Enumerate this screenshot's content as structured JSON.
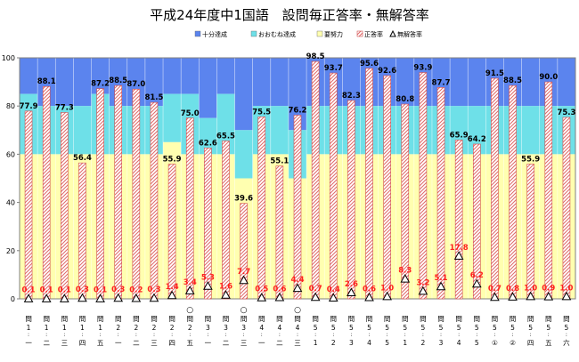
{
  "chart_data": {
    "type": "bar",
    "title": "平成24年度中1国語　設問毎正答率・無解答率",
    "legend_position": "top-right",
    "ylim": [
      0,
      100
    ],
    "yticks": [
      0,
      20,
      40,
      60,
      80,
      100
    ],
    "grid": false,
    "legend": [
      {
        "key": "sufficient",
        "label": "十分達成",
        "color": "#5b84ee"
      },
      {
        "key": "mostly",
        "label": "おおむね達成",
        "color": "#6ee0e8"
      },
      {
        "key": "effort",
        "label": "要努力",
        "color": "#ffffb0"
      },
      {
        "key": "correct",
        "label": "正答率",
        "color": "#e8a0a0"
      },
      {
        "key": "noanswer",
        "label": "無解答率",
        "color": "#000000"
      }
    ],
    "categories": [
      {
        "top": "問",
        "major": "1",
        "minor": "一",
        "circle": false
      },
      {
        "top": "問",
        "major": "1",
        "minor": "二",
        "circle": false
      },
      {
        "top": "問",
        "major": "1",
        "minor": "三",
        "circle": false
      },
      {
        "top": "問",
        "major": "1",
        "minor": "四",
        "circle": false
      },
      {
        "top": "問",
        "major": "1",
        "minor": "五",
        "circle": false
      },
      {
        "top": "問",
        "major": "2",
        "minor": "一",
        "circle": false
      },
      {
        "top": "問",
        "major": "2",
        "minor": "二",
        "circle": false
      },
      {
        "top": "問",
        "major": "2",
        "minor": "三",
        "circle": false
      },
      {
        "top": "問",
        "major": "2",
        "minor": "四",
        "circle": false
      },
      {
        "top": "問",
        "major": "2",
        "minor": "五",
        "circle": true
      },
      {
        "top": "問",
        "major": "3",
        "minor": "一",
        "circle": false
      },
      {
        "top": "問",
        "major": "3",
        "minor": "二",
        "circle": false
      },
      {
        "top": "問",
        "major": "3",
        "minor": "三",
        "circle": true
      },
      {
        "top": "問",
        "major": "4",
        "minor": "一",
        "circle": false
      },
      {
        "top": "問",
        "major": "4",
        "minor": "二",
        "circle": false
      },
      {
        "top": "問",
        "major": "4",
        "minor": "三",
        "circle": true
      },
      {
        "top": "問",
        "major": "5",
        "minor": "1",
        "circle": false
      },
      {
        "top": "問",
        "major": "5",
        "minor": "2",
        "circle": false
      },
      {
        "top": "問",
        "major": "5",
        "minor": "3",
        "circle": false
      },
      {
        "top": "問",
        "major": "5",
        "minor": "4",
        "circle": false
      },
      {
        "top": "問",
        "major": "5",
        "minor": "5",
        "circle": false
      },
      {
        "top": "問",
        "major": "5",
        "minor": "1",
        "circle": false
      },
      {
        "top": "問",
        "major": "5",
        "minor": "2",
        "circle": false
      },
      {
        "top": "問",
        "major": "5",
        "minor": "3",
        "circle": false
      },
      {
        "top": "問",
        "major": "5",
        "minor": "4",
        "circle": false
      },
      {
        "top": "問",
        "major": "5",
        "minor": "5",
        "circle": false
      },
      {
        "top": "問",
        "major": "5",
        "minor": "①",
        "circle": false
      },
      {
        "top": "問",
        "major": "5",
        "minor": "②",
        "circle": false
      },
      {
        "top": "問",
        "major": "5",
        "minor": "四",
        "circle": false
      },
      {
        "top": "問",
        "major": "5",
        "minor": "五",
        "circle": false
      },
      {
        "top": "問",
        "major": "5",
        "minor": "六",
        "circle": false
      }
    ],
    "correct_rate": [
      77.9,
      88.1,
      77.3,
      56.4,
      87.2,
      88.5,
      87.0,
      81.5,
      55.9,
      75.0,
      62.6,
      65.5,
      39.6,
      75.5,
      55.1,
      76.2,
      98.5,
      93.7,
      82.3,
      95.6,
      92.6,
      80.8,
      93.9,
      87.7,
      65.9,
      64.2,
      91.5,
      88.5,
      55.9,
      90.0,
      75.3
    ],
    "correct_rate_labels": [
      "77.9",
      "88.1",
      "77.3",
      "56.4",
      "87.2",
      "88.5",
      "87.0",
      "81.5",
      "55.9",
      "75.0",
      "62.6",
      "65.5",
      "39.6",
      "75.5",
      "55.1",
      "76.2",
      "98.5",
      "93.7",
      "82.3",
      "95.6",
      "92.6",
      "80.8",
      "93.9",
      "87.7",
      "65.9",
      "64.2",
      "91.5",
      "88.5",
      "55.9",
      "90.0",
      "75.3"
    ],
    "no_answer_rate": [
      0.1,
      0.1,
      0.1,
      0.3,
      0.1,
      0.3,
      0.2,
      0.3,
      1.4,
      3.4,
      5.3,
      1.6,
      7.7,
      0.5,
      0.6,
      4.4,
      0.7,
      0.4,
      2.6,
      0.6,
      1.0,
      8.3,
      3.2,
      5.1,
      17.8,
      6.2,
      0.7,
      0.8,
      1.0,
      0.9,
      1.0
    ],
    "no_answer_labels": [
      "0.1",
      "0.1",
      "0.1",
      "0.3",
      "0.1",
      "0.3",
      "0.2",
      "0.3",
      "1.4",
      "3.4",
      "5.3",
      "1.6",
      "7.7",
      "0.5",
      "0.6",
      "4.4",
      "0.7",
      "0.4",
      "2.6",
      "0.6",
      "1.0",
      "8.3",
      "3.2",
      "5.1",
      "17.8",
      "6.2",
      "0.7",
      "0.8",
      "1.0",
      "0.9",
      "1.0"
    ],
    "effort_upper": [
      60,
      60,
      60,
      60,
      60,
      60,
      60,
      60,
      65,
      60,
      60,
      60,
      50,
      60,
      60,
      50,
      60,
      60,
      60,
      60,
      60,
      60,
      60,
      60,
      60,
      60,
      60,
      60,
      60,
      60,
      60
    ],
    "mostly_upper": [
      85,
      80,
      80,
      80,
      85,
      80,
      80,
      80,
      85,
      85,
      75,
      85,
      70,
      80,
      80,
      70,
      80,
      80,
      80,
      80,
      80,
      80,
      80,
      80,
      80,
      80,
      80,
      80,
      80,
      80,
      80
    ]
  }
}
